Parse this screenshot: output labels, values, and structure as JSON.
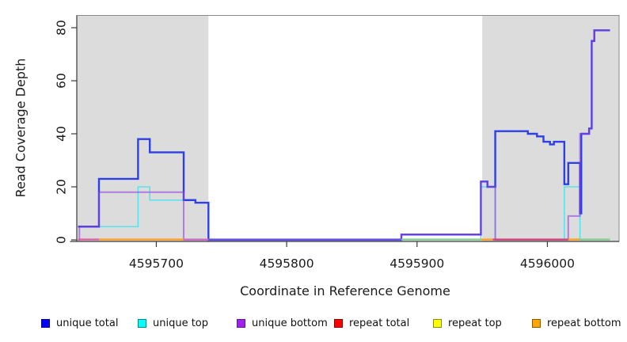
{
  "chart_data": {
    "type": "line",
    "subtype": "step-coverage",
    "title": "",
    "xlabel": "Coordinate in Reference Genome",
    "ylabel": "Read Coverage Depth",
    "xlim": [
      4595639,
      4596055
    ],
    "ylim": [
      0,
      80
    ],
    "x_ticks": [
      4595700,
      4595800,
      4595900,
      4596000
    ],
    "y_ticks": [
      0,
      20,
      40,
      60,
      80
    ],
    "grid": "off",
    "shade_color": "#DCDCDC",
    "shaded_regions": [
      {
        "from": 4595639,
        "to": 4595740
      },
      {
        "from": 4595950,
        "to": 4596055
      }
    ],
    "series": [
      {
        "name": "unique top",
        "color": "#55E4EF",
        "width": 1.6,
        "points": [
          [
            4595640,
            5
          ],
          [
            4595686,
            20
          ],
          [
            4595695,
            15
          ],
          [
            4595730,
            14
          ],
          [
            4595740,
            0
          ],
          [
            4595949,
            20
          ],
          [
            4595960,
            0
          ],
          [
            4596013,
            20
          ],
          [
            4596025,
            0
          ],
          [
            4596048,
            0
          ]
        ]
      },
      {
        "name": "unique total",
        "color": "#2C3FE8",
        "width": 2.4,
        "points": [
          [
            4595640,
            5
          ],
          [
            4595656,
            23
          ],
          [
            4595686,
            38
          ],
          [
            4595695,
            33
          ],
          [
            4595721,
            15
          ],
          [
            4595730,
            14
          ],
          [
            4595740,
            0
          ],
          [
            4595888,
            2
          ],
          [
            4595949,
            22
          ],
          [
            4595954,
            20
          ],
          [
            4595960,
            41
          ],
          [
            4595985,
            40
          ],
          [
            4595992,
            39
          ],
          [
            4595997,
            37
          ],
          [
            4596002,
            36
          ],
          [
            4596005,
            37
          ],
          [
            4596013,
            21
          ],
          [
            4596016,
            29
          ],
          [
            4596025,
            10
          ],
          [
            4596026,
            40
          ],
          [
            4596032,
            42
          ],
          [
            4596034,
            75
          ],
          [
            4596036,
            79
          ],
          [
            4596048,
            79
          ]
        ]
      },
      {
        "name": "unique bottom",
        "color": "rgba(145,60,225,0.6)",
        "width": 2.0,
        "points": [
          [
            4595640,
            0
          ],
          [
            4595641,
            5
          ],
          [
            4595656,
            18
          ],
          [
            4595721,
            0
          ],
          [
            4595888,
            2
          ],
          [
            4595949,
            22
          ],
          [
            4595954,
            20
          ],
          [
            4595960,
            0
          ],
          [
            4596016,
            9
          ],
          [
            4596025,
            40
          ],
          [
            4596032,
            42
          ],
          [
            4596034,
            75
          ],
          [
            4596036,
            79
          ],
          [
            4596048,
            79
          ]
        ]
      }
    ],
    "repeat_series_note": "repeat total / repeat top / repeat bottom remain at depth 0 across the plotted range; they are visible only as colored segments along the zero baseline",
    "baseline_segments": [
      {
        "from": 4595640,
        "to": 4595656,
        "color": "#DD5FA0"
      },
      {
        "from": 4595656,
        "to": 4595721,
        "color": "#FF9E1B"
      },
      {
        "from": 4595721,
        "to": 4595740,
        "color": "#CE6FBE"
      },
      {
        "from": 4595740,
        "to": 4595888,
        "color": "#6156DE"
      },
      {
        "from": 4595888,
        "to": 4595949,
        "color": "#8CCA8C"
      },
      {
        "from": 4595949,
        "to": 4595958,
        "color": "#FF9E1B"
      },
      {
        "from": 4595958,
        "to": 4596016,
        "color": "#D8436B"
      },
      {
        "from": 4596016,
        "to": 4596025,
        "color": "#FF9E1B"
      },
      {
        "from": 4596025,
        "to": 4596048,
        "color": "#8CCA8C"
      }
    ],
    "legend_position": "bottom",
    "legend": [
      {
        "label": "unique total",
        "fill": "#0000FF",
        "border": "#00008B"
      },
      {
        "label": "unique top",
        "fill": "#00FFFF",
        "border": "#008B8B"
      },
      {
        "label": "unique bottom",
        "fill": "#A020F0",
        "border": "#5D1A8B"
      },
      {
        "label": "repeat total",
        "fill": "#FF0000",
        "border": "#8B0000"
      },
      {
        "label": "repeat top",
        "fill": "#FFFF00",
        "border": "#8B8B00"
      },
      {
        "label": "repeat bottom",
        "fill": "#FFA500",
        "border": "#8B5A00"
      }
    ]
  }
}
